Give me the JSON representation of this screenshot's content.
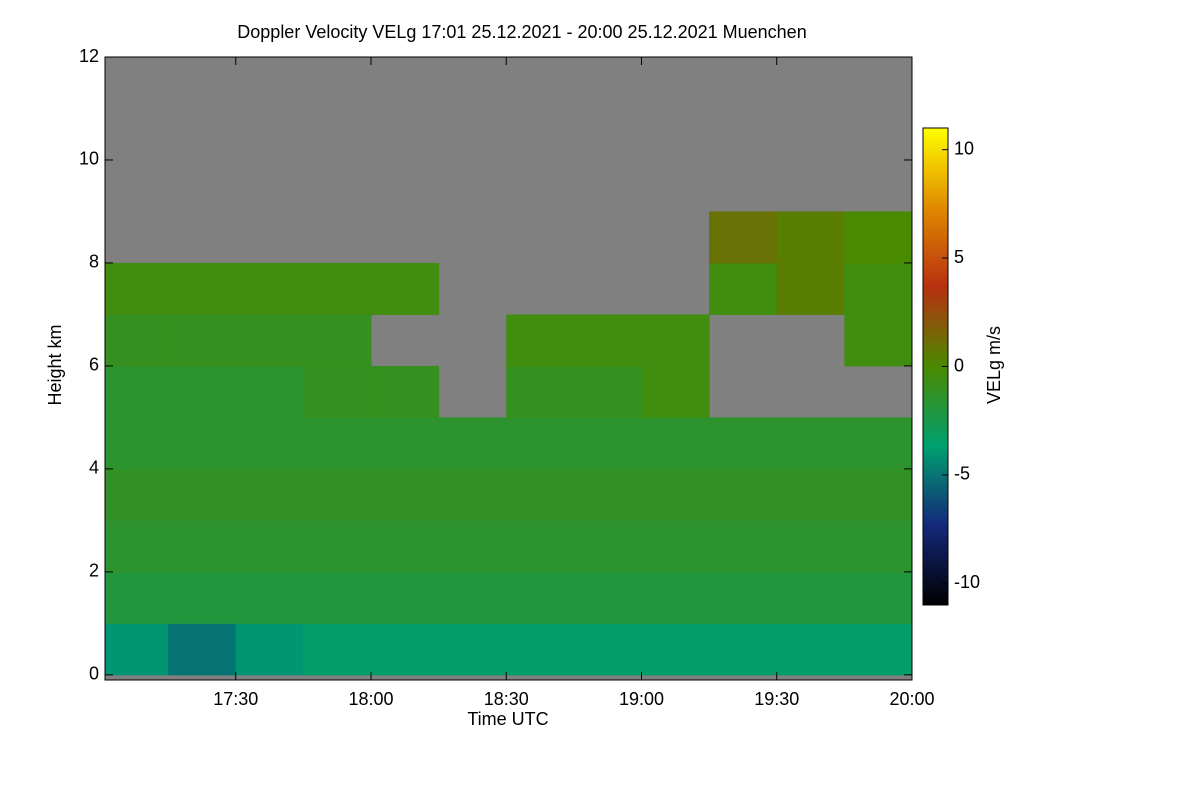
{
  "chart_data": {
    "type": "heatmap",
    "title": "Doppler Velocity VELg   17:01 25.12.2021 - 20:00 25.12.2021 Muenchen",
    "xlabel": "Time UTC",
    "ylabel": "Height km",
    "colorbar_label": "VELg m/s",
    "x": [
      17.125,
      17.375,
      17.625,
      17.875,
      18.125,
      18.375,
      18.625,
      18.875,
      19.125,
      19.375,
      19.625,
      19.875
    ],
    "y": [
      0.5,
      1.5,
      2.5,
      3.5,
      4.5,
      5.5,
      6.5,
      7.5,
      8.5,
      9.5,
      10.5,
      11.5
    ],
    "values": [
      [
        -4,
        -5,
        -4,
        -3.5,
        -3.5,
        -3.5,
        -3.5,
        -3.5,
        -3.5,
        -3.5,
        -3.5,
        -3.5
      ],
      [
        -2,
        -2,
        -2,
        -2,
        -2,
        -2,
        -2,
        -2,
        -2,
        -2,
        -2,
        -2
      ],
      [
        -1.5,
        -1.5,
        -1.5,
        -1.5,
        -1.5,
        -1.5,
        -1.5,
        -1.5,
        -1.5,
        -1.5,
        -1.5,
        -1.5
      ],
      [
        -1.2,
        -1.2,
        -1.2,
        -1.2,
        -1.2,
        -1.2,
        -1.2,
        -1.2,
        -1.2,
        -1.2,
        -1.2,
        -1.2
      ],
      [
        -1.5,
        -1.5,
        -1.5,
        -1.5,
        -1.5,
        -1.5,
        -1.5,
        -1.5,
        -1.5,
        -1.5,
        -1.5,
        -1.5
      ],
      [
        -1.5,
        -1.5,
        -1.5,
        -1,
        -1,
        null,
        -1,
        -1,
        -0.5,
        null,
        null,
        null
      ],
      [
        -1,
        -1,
        -1,
        -1,
        null,
        null,
        -0.5,
        -0.5,
        -0.5,
        null,
        null,
        -0.5
      ],
      [
        -0.5,
        -0.5,
        -0.5,
        -0.5,
        -0.5,
        null,
        null,
        null,
        null,
        -0.5,
        0.5,
        -0.5
      ],
      [
        null,
        null,
        null,
        null,
        null,
        null,
        null,
        null,
        null,
        1,
        0.5,
        0
      ],
      [
        null,
        null,
        null,
        null,
        null,
        null,
        null,
        null,
        null,
        null,
        null,
        null
      ],
      [
        null,
        null,
        null,
        null,
        null,
        null,
        null,
        null,
        null,
        null,
        null,
        null
      ],
      [
        null,
        null,
        null,
        null,
        null,
        null,
        null,
        null,
        null,
        null,
        null,
        null
      ]
    ],
    "xlim": [
      17.0167,
      20.0
    ],
    "xticks": [
      {
        "value": 17.5,
        "label": "17:30"
      },
      {
        "value": 18.0,
        "label": "18:00"
      },
      {
        "value": 18.5,
        "label": "18:30"
      },
      {
        "value": 19.0,
        "label": "19:00"
      },
      {
        "value": 19.5,
        "label": "19:30"
      },
      {
        "value": 20.0,
        "label": "20:00"
      }
    ],
    "ylim": [
      -0.1,
      12.0
    ],
    "yticks": [
      0,
      2,
      4,
      6,
      8,
      10,
      12
    ],
    "clim": [
      -11,
      11
    ],
    "cticks": [
      -10,
      -5,
      0,
      5,
      10
    ],
    "colorscale": [
      "#000000",
      "#14287a",
      "#00a070",
      "#4a8a00",
      "#b83010",
      "#e08a00",
      "#ffff00"
    ],
    "missing_color": "#808080"
  }
}
